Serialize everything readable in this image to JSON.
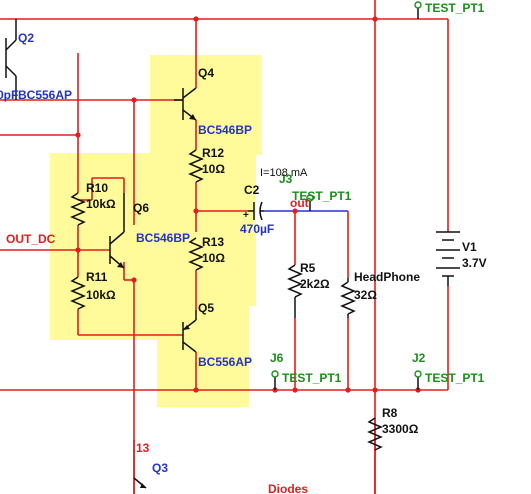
{
  "colors": {
    "wire": "#e31d1d",
    "highlight": "#fffb9a",
    "label_blue": "#2233cc",
    "label_green": "#1a8f1a"
  },
  "test_points": {
    "top_right": "TEST_PT1",
    "j3_ref": "J3",
    "j3_label": "TEST_PT1",
    "j6_ref": "J6",
    "j6_label": "TEST_PT1",
    "j2_ref": "J2",
    "j2_label": "TEST_PT1"
  },
  "transistors": {
    "q2": {
      "ref": "Q2",
      "model": "BC556AP",
      "cut_label": "0pF"
    },
    "q4": {
      "ref": "Q4",
      "model": "BC546BP"
    },
    "q6": {
      "ref": "Q6",
      "model": "BC546BP"
    },
    "q5": {
      "ref": "Q5",
      "model": "BC556AP"
    },
    "q3": {
      "ref": "Q3"
    }
  },
  "resistors": {
    "r10": {
      "ref": "R10",
      "value": "10kΩ"
    },
    "r11": {
      "ref": "R11",
      "value": "10kΩ"
    },
    "r12": {
      "ref": "R12",
      "value": "10Ω"
    },
    "r13": {
      "ref": "R13",
      "value": "10Ω"
    },
    "r5": {
      "ref": "R5",
      "value": "2k2Ω"
    },
    "r8": {
      "ref": "R8",
      "value": "3300Ω"
    }
  },
  "capacitor": {
    "ref": "C2",
    "value": "470µF",
    "polarity": "+"
  },
  "load": {
    "ref": "HeadPhone",
    "value": "32Ω"
  },
  "source": {
    "ref": "V1",
    "value": "3.7V"
  },
  "nets": {
    "out_dc": "OUT_DC",
    "out": "out",
    "net13": "13",
    "diodes": "Diodes"
  },
  "probe": {
    "current": "I=108 mA"
  }
}
